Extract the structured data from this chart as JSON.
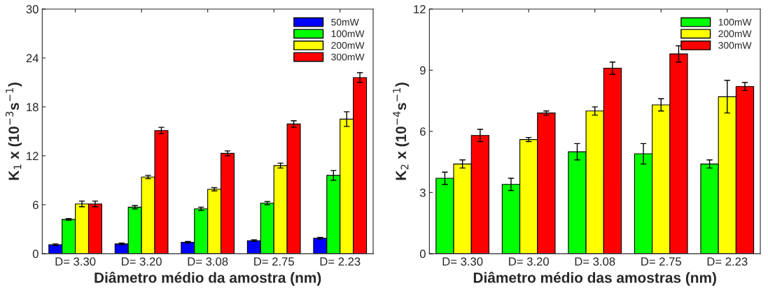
{
  "chart_data": [
    {
      "type": "bar",
      "xlabel": "Diâmetro médio da amostra (nm)",
      "ylabel": "K$_{1}$ x (10$^{−3}$s$^{−1}$)",
      "categories": [
        "D= 3.30",
        "D= 3.20",
        "D= 3.08",
        "D= 2.75",
        "D= 2.23"
      ],
      "ylim": [
        0,
        30
      ],
      "yticks": [
        0,
        6,
        12,
        18,
        24,
        30
      ],
      "grid": false,
      "legend": "top right",
      "series": [
        {
          "name": "50mW",
          "color": "#0000ff",
          "values": [
            1.1,
            1.2,
            1.4,
            1.6,
            1.9
          ],
          "errors": [
            0.1,
            0.1,
            0.1,
            0.1,
            0.1
          ]
        },
        {
          "name": "100mW",
          "color": "#00ff00",
          "values": [
            4.2,
            5.7,
            5.5,
            6.2,
            9.6
          ],
          "errors": [
            0.1,
            0.2,
            0.2,
            0.2,
            0.6
          ]
        },
        {
          "name": "200mW",
          "color": "#ffff00",
          "values": [
            6.1,
            9.4,
            7.9,
            10.8,
            16.5
          ],
          "errors": [
            0.35,
            0.2,
            0.2,
            0.3,
            0.9
          ]
        },
        {
          "name": "300mW",
          "color": "#ff0000",
          "values": [
            6.1,
            15.1,
            12.3,
            15.9,
            21.6
          ],
          "errors": [
            0.35,
            0.4,
            0.3,
            0.4,
            0.6
          ]
        }
      ]
    },
    {
      "type": "bar",
      "xlabel": "Diâmetro médio das amostras (nm)",
      "ylabel": "K$_{2}$ x (10$^{−4}$s$^{−1}$)",
      "categories": [
        "D= 3.30",
        "D= 3.20",
        "D= 3.08",
        "D= 2.75",
        "D= 2.23"
      ],
      "ylim": [
        0,
        12
      ],
      "yticks": [
        0,
        3,
        6,
        9,
        12
      ],
      "grid": false,
      "legend": "top right",
      "series": [
        {
          "name": "100mW",
          "color": "#00ff00",
          "values": [
            3.7,
            3.4,
            5.0,
            4.9,
            4.4
          ],
          "errors": [
            0.3,
            0.3,
            0.4,
            0.5,
            0.2
          ]
        },
        {
          "name": "200mW",
          "color": "#ffff00",
          "values": [
            4.4,
            5.6,
            7.0,
            7.3,
            7.7
          ],
          "errors": [
            0.2,
            0.1,
            0.2,
            0.3,
            0.8
          ]
        },
        {
          "name": "300mW",
          "color": "#ff0000",
          "values": [
            5.8,
            6.9,
            9.1,
            9.8,
            8.2
          ],
          "errors": [
            0.3,
            0.1,
            0.3,
            0.4,
            0.2
          ]
        }
      ]
    }
  ]
}
